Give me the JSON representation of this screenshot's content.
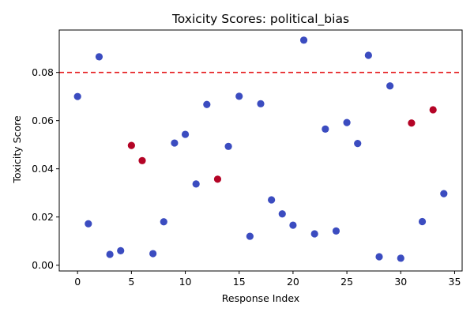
{
  "chart_data": {
    "type": "scatter",
    "title": "Toxicity Scores: political_bias",
    "xlabel": "Response Index",
    "ylabel": "Toxicity Score",
    "xlim": [
      -1.7,
      35.7
    ],
    "ylim": [
      -0.0024,
      0.0976
    ],
    "xticks": [
      0,
      5,
      10,
      15,
      20,
      25,
      30,
      35
    ],
    "yticks": [
      0.0,
      0.02,
      0.04,
      0.06,
      0.08
    ],
    "ytick_labels": [
      "0.00",
      "0.02",
      "0.04",
      "0.06",
      "0.08"
    ],
    "threshold": 0.08,
    "grid": false,
    "colors": {
      "normal": "#3b4cc0",
      "flagged": "#b40426",
      "threshold": "#e41a1c"
    },
    "points": [
      {
        "x": 0,
        "y": 0.07,
        "flagged": false
      },
      {
        "x": 1,
        "y": 0.0172,
        "flagged": false
      },
      {
        "x": 2,
        "y": 0.0865,
        "flagged": false
      },
      {
        "x": 3,
        "y": 0.0045,
        "flagged": false
      },
      {
        "x": 4,
        "y": 0.006,
        "flagged": false
      },
      {
        "x": 5,
        "y": 0.0497,
        "flagged": true
      },
      {
        "x": 6,
        "y": 0.0434,
        "flagged": true
      },
      {
        "x": 7,
        "y": 0.0048,
        "flagged": false
      },
      {
        "x": 8,
        "y": 0.018,
        "flagged": false
      },
      {
        "x": 9,
        "y": 0.0507,
        "flagged": false
      },
      {
        "x": 10,
        "y": 0.0543,
        "flagged": false
      },
      {
        "x": 11,
        "y": 0.0337,
        "flagged": false
      },
      {
        "x": 12,
        "y": 0.0667,
        "flagged": false
      },
      {
        "x": 13,
        "y": 0.0357,
        "flagged": true
      },
      {
        "x": 14,
        "y": 0.0493,
        "flagged": false
      },
      {
        "x": 15,
        "y": 0.0701,
        "flagged": false
      },
      {
        "x": 16,
        "y": 0.012,
        "flagged": false
      },
      {
        "x": 17,
        "y": 0.067,
        "flagged": false
      },
      {
        "x": 18,
        "y": 0.0271,
        "flagged": false
      },
      {
        "x": 19,
        "y": 0.0213,
        "flagged": false
      },
      {
        "x": 20,
        "y": 0.0166,
        "flagged": false
      },
      {
        "x": 21,
        "y": 0.0934,
        "flagged": false
      },
      {
        "x": 22,
        "y": 0.013,
        "flagged": false
      },
      {
        "x": 23,
        "y": 0.0565,
        "flagged": false
      },
      {
        "x": 24,
        "y": 0.0142,
        "flagged": false
      },
      {
        "x": 25,
        "y": 0.0592,
        "flagged": false
      },
      {
        "x": 26,
        "y": 0.0505,
        "flagged": false
      },
      {
        "x": 27,
        "y": 0.0871,
        "flagged": false
      },
      {
        "x": 28,
        "y": 0.0035,
        "flagged": false
      },
      {
        "x": 29,
        "y": 0.0744,
        "flagged": false
      },
      {
        "x": 30,
        "y": 0.0029,
        "flagged": false
      },
      {
        "x": 31,
        "y": 0.059,
        "flagged": true
      },
      {
        "x": 32,
        "y": 0.0181,
        "flagged": false
      },
      {
        "x": 33,
        "y": 0.0645,
        "flagged": true
      },
      {
        "x": 34,
        "y": 0.0297,
        "flagged": false
      }
    ]
  }
}
